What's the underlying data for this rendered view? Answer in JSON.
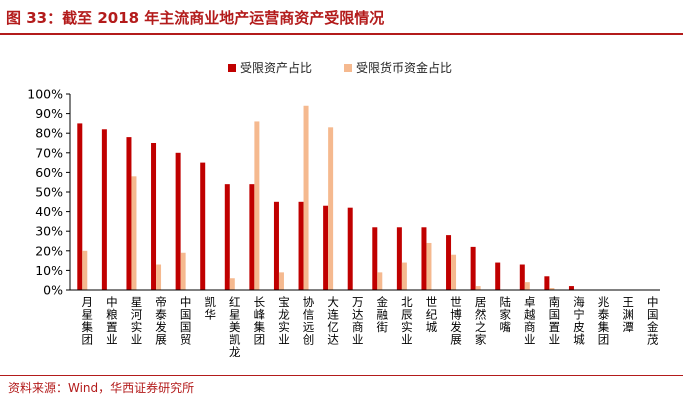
{
  "figure": {
    "title": "图 33：截至 2018 年主流商业地产运营商资产受限情况",
    "source": "资料来源：Wind，华西证券研究所"
  },
  "colors": {
    "accent": "#b31b1b",
    "series1": "#c00000",
    "series2": "#f5b98f"
  },
  "chart_data": {
    "type": "bar",
    "categories": [
      "月星集团",
      "中粮置业",
      "星河实业",
      "帝泰发展",
      "中国国贸",
      "凯华",
      "红星美凯龙",
      "长峰集团",
      "宝龙实业",
      "协信远创",
      "大连亿达",
      "万达商业",
      "金融街",
      "北辰实业",
      "世纪城",
      "世博发展",
      "居然之家",
      "陆家嘴",
      "卓越商业",
      "南国置业",
      "海宁皮城",
      "兆泰集团",
      "王渊潭",
      "中国金茂"
    ],
    "series": [
      {
        "name": "受限资产占比",
        "values": [
          85,
          82,
          78,
          75,
          70,
          65,
          54,
          54,
          45,
          45,
          43,
          42,
          32,
          32,
          32,
          28,
          22,
          14,
          13,
          7,
          2,
          0,
          0,
          0
        ]
      },
      {
        "name": "受限货币资金占比",
        "values": [
          20,
          0,
          58,
          13,
          19,
          0,
          6,
          86,
          9,
          94,
          83,
          0,
          9,
          14,
          24,
          18,
          2,
          0,
          4,
          1,
          0,
          0,
          0,
          0
        ]
      }
    ],
    "ylim": [
      0,
      100
    ],
    "yticks": [
      0,
      10,
      20,
      30,
      40,
      50,
      60,
      70,
      80,
      90,
      100
    ],
    "ytick_labels": [
      "0%",
      "10%",
      "20%",
      "30%",
      "40%",
      "50%",
      "60%",
      "70%",
      "80%",
      "90%",
      "100%"
    ],
    "legend_position": "top-center",
    "grid": false
  }
}
